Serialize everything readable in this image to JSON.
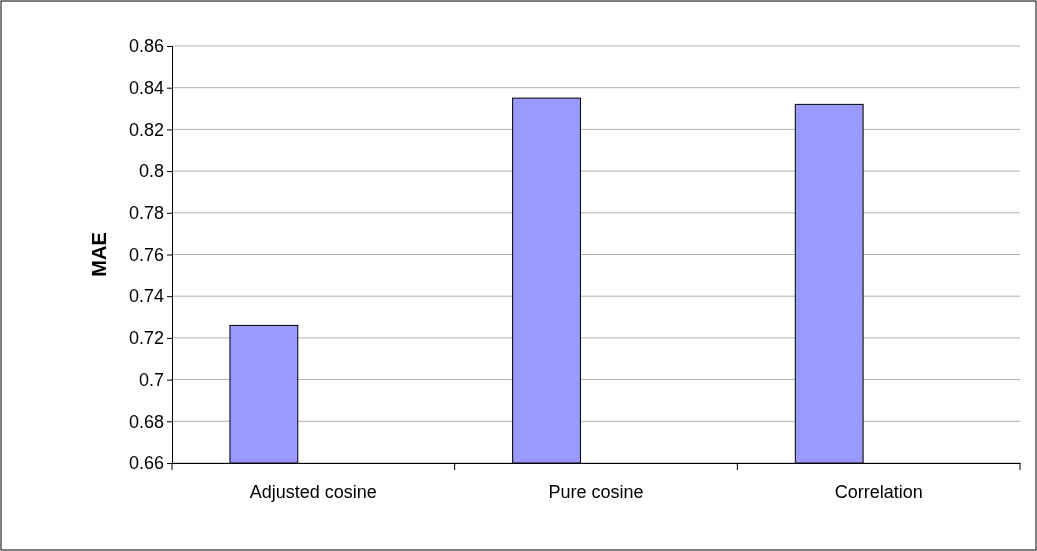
{
  "chart_data": {
    "type": "bar",
    "ylabel": "MAE",
    "categories": [
      "Adjusted cosine",
      "Pure cosine",
      "Correlation"
    ],
    "values": [
      0.726,
      0.835,
      0.832
    ],
    "color": "#9999ff",
    "ylim": [
      0.66,
      0.86
    ],
    "yticks": [
      0.66,
      0.68,
      0.7,
      0.72,
      0.74,
      0.76,
      0.78,
      0.8,
      0.82,
      0.84,
      0.86
    ],
    "grid": "y"
  }
}
